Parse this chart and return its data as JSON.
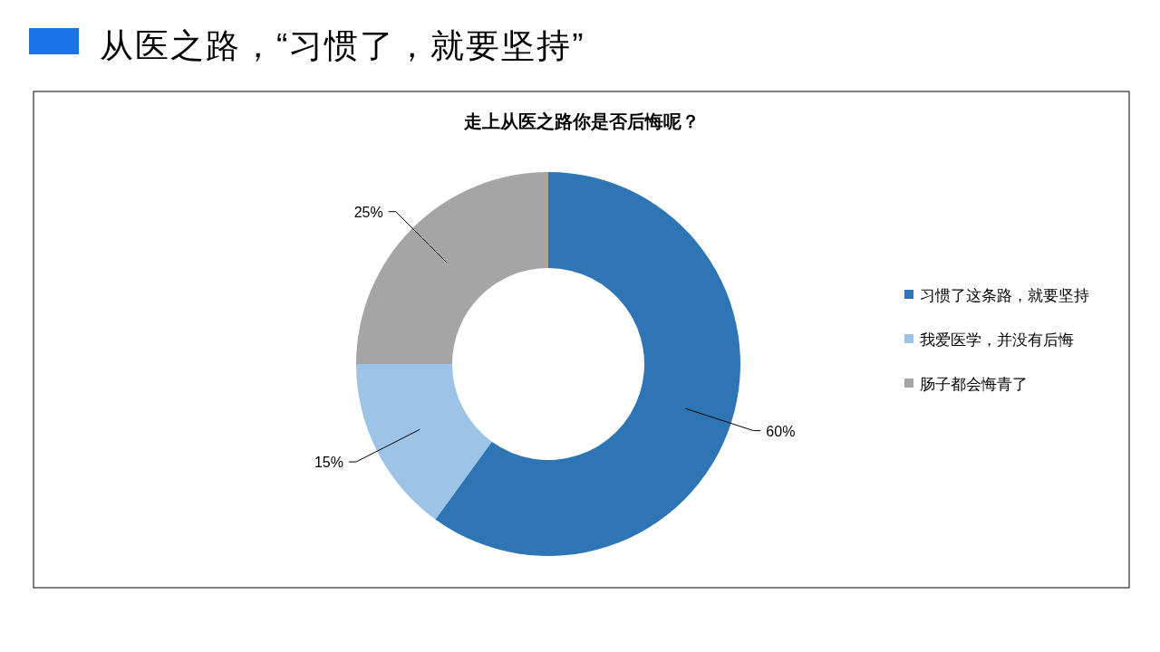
{
  "chart_data": {
    "type": "donut",
    "title": "从医之路，“习惯了，就要坚持”",
    "subtitle": "走上从医之路你是否后悔呢？",
    "categories": [
      "习惯了这条路，就要坚持",
      "我爱医学，并没有后悔",
      "肠子都会悔青了"
    ],
    "values": [
      60,
      15,
      25
    ],
    "colors": [
      "#2e75b6",
      "#9dc3e6",
      "#a5a5a5"
    ],
    "value_labels": [
      "60%",
      "15%",
      "25%"
    ],
    "legend": "right"
  }
}
